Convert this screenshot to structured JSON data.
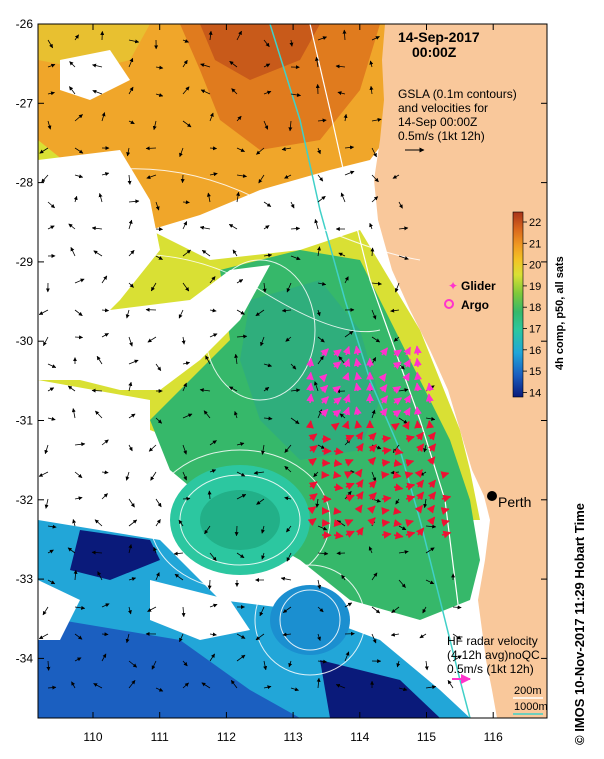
{
  "header": {
    "date": "14-Sep-2017",
    "time": "00:00Z"
  },
  "gsla_note": {
    "line1": "GSLA (0.1m contours)",
    "line2": "and velocities for",
    "line3": "14-Sep 00:00Z",
    "line4": "0.5m/s (1kt 12h)"
  },
  "colorbar": {
    "label": "4h comp, p50, all sats",
    "ticks": [
      "22",
      "21",
      "20",
      "19",
      "18",
      "17",
      "16",
      "15",
      "14"
    ],
    "colors": [
      "#0a1a7a",
      "#1b5fc0",
      "#22a6d8",
      "#2cc7a0",
      "#36b86a",
      "#7fc93a",
      "#d9e034",
      "#f3c325",
      "#f09a22",
      "#d9661c",
      "#a8341a"
    ]
  },
  "legend": {
    "glider": "Glider",
    "argo": "Argo",
    "glider_color": "#ff33cc",
    "argo_color": "#ff33cc"
  },
  "city": {
    "name": "Perth"
  },
  "hf_note": {
    "line1": "HF radar velocity",
    "line2": "(4-12h avg)noQC",
    "line3": "0.5m/s (1kt 12h)"
  },
  "isobaths": {
    "label_200": "200m",
    "label_1000": "1000m",
    "color_200": "#ffffff",
    "color_1000": "#40d0c8"
  },
  "axes": {
    "lat_ticks": [
      "-26",
      "-27",
      "-28",
      "-29",
      "-30",
      "-31",
      "-32",
      "-33",
      "-34"
    ],
    "lon_ticks": [
      "110",
      "111",
      "112",
      "113",
      "114",
      "115",
      "116"
    ]
  },
  "colors": {
    "land": "#f9c89b",
    "cloud": "#ffffff",
    "hf_arrow": "#ee1133",
    "argo_marker": "#ff33cc"
  },
  "credit": "© IMOS 10-Nov-2017 11:29 Hobart Time"
}
